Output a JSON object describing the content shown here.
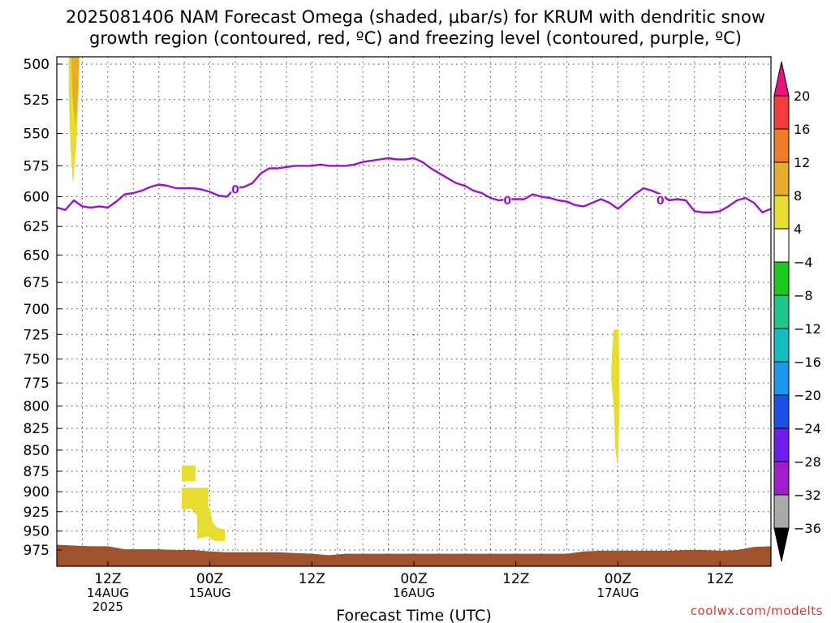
{
  "title_line1": "2025081406 NAM Forecast Omega (shaded, μbar/s) for KRUM with dendritic snow",
  "title_line2": "growth region (contoured, red, ºC) and freezing level (contoured, purple, ºC)",
  "watermark": "coolwx.com/modelts",
  "chart_data": {
    "type": "area",
    "title": "2025081406 NAM Forecast Omega (shaded, μbar/s) for KRUM with dendritic snow growth region (contoured, red, ºC) and freezing level (contoured, purple, ºC)",
    "xlabel": "Forecast Time (UTC)",
    "ylabel": "",
    "x_range_hours": [
      6,
      90
    ],
    "y_range_hPa": [
      495,
      997
    ],
    "y_scale": "log-pressure (inverted)",
    "grid": true,
    "y_ticks": [
      500,
      525,
      550,
      575,
      600,
      625,
      650,
      675,
      700,
      725,
      750,
      775,
      800,
      825,
      850,
      875,
      900,
      925,
      950,
      975
    ],
    "x_ticks": [
      {
        "hour": 12,
        "lines": [
          "12Z",
          "14AUG",
          "2025"
        ]
      },
      {
        "hour": 24,
        "lines": [
          "00Z",
          "15AUG"
        ]
      },
      {
        "hour": 36,
        "lines": [
          "12Z"
        ]
      },
      {
        "hour": 48,
        "lines": [
          "00Z",
          "16AUG"
        ]
      },
      {
        "hour": 60,
        "lines": [
          "12Z"
        ]
      },
      {
        "hour": 72,
        "lines": [
          "00Z",
          "17AUG"
        ]
      },
      {
        "hour": 84,
        "lines": [
          "12Z"
        ]
      }
    ],
    "colorbar": {
      "labels": [
        "20",
        "16",
        "12",
        "8",
        "4",
        "−4",
        "−8",
        "−12",
        "−16",
        "−20",
        "−24",
        "−28",
        "−32",
        "−36"
      ],
      "bins": [
        {
          "from": 16,
          "to": 20,
          "color": "#f03c3c"
        },
        {
          "from": 12,
          "to": 16,
          "color": "#ee7a2a"
        },
        {
          "from": 8,
          "to": 12,
          "color": "#e6ac2e"
        },
        {
          "from": 4,
          "to": 8,
          "color": "#e6dc32"
        },
        {
          "from": -4,
          "to": 4,
          "color": "#ffffff"
        },
        {
          "from": -8,
          "to": -4,
          "color": "#1ec81e"
        },
        {
          "from": -12,
          "to": -8,
          "color": "#1ec88c"
        },
        {
          "from": -16,
          "to": -12,
          "color": "#14bebe"
        },
        {
          "from": -20,
          "to": -16,
          "color": "#1e96f0"
        },
        {
          "from": -24,
          "to": -20,
          "color": "#1e50e6"
        },
        {
          "from": -28,
          "to": -24,
          "color": "#6e1ee6"
        },
        {
          "from": -32,
          "to": -28,
          "color": "#a01ec8"
        },
        {
          "from": -36,
          "to": -32,
          "color": "#aaaaaa"
        }
      ],
      "over_color": "#e6147a",
      "under_color": "#000000"
    },
    "freezing_level": {
      "label": "0",
      "color": "#9a14c8",
      "points": [
        [
          6,
          609
        ],
        [
          7,
          611
        ],
        [
          8,
          603
        ],
        [
          9,
          608
        ],
        [
          10,
          609
        ],
        [
          11,
          608
        ],
        [
          12,
          609
        ],
        [
          13,
          604
        ],
        [
          14,
          598
        ],
        [
          15,
          597
        ],
        [
          16,
          595
        ],
        [
          17,
          592
        ],
        [
          18,
          590
        ],
        [
          19,
          591
        ],
        [
          20,
          593
        ],
        [
          21,
          593
        ],
        [
          22,
          593
        ],
        [
          23,
          594
        ],
        [
          24,
          596
        ],
        [
          25,
          599
        ],
        [
          26,
          600
        ],
        [
          27,
          593
        ],
        [
          28,
          592
        ],
        [
          29,
          589
        ],
        [
          30,
          581
        ],
        [
          31,
          577
        ],
        [
          32,
          577
        ],
        [
          33,
          576
        ],
        [
          34,
          575
        ],
        [
          35,
          575
        ],
        [
          36,
          575
        ],
        [
          37,
          574
        ],
        [
          38,
          575
        ],
        [
          39,
          575
        ],
        [
          40,
          575
        ],
        [
          41,
          574
        ],
        [
          42,
          572
        ],
        [
          43,
          571
        ],
        [
          44,
          570
        ],
        [
          45,
          569
        ],
        [
          46,
          570
        ],
        [
          47,
          570
        ],
        [
          48,
          569
        ],
        [
          49,
          572
        ],
        [
          50,
          577
        ],
        [
          51,
          581
        ],
        [
          52,
          585
        ],
        [
          53,
          589
        ],
        [
          54,
          591
        ],
        [
          55,
          595
        ],
        [
          56,
          597
        ],
        [
          57,
          601
        ],
        [
          58,
          603
        ],
        [
          59,
          602
        ],
        [
          60,
          602
        ],
        [
          61,
          602
        ],
        [
          62,
          598
        ],
        [
          63,
          600
        ],
        [
          64,
          601
        ],
        [
          65,
          603
        ],
        [
          66,
          604
        ],
        [
          67,
          607
        ],
        [
          68,
          608
        ],
        [
          69,
          605
        ],
        [
          70,
          602
        ],
        [
          71,
          605
        ],
        [
          72,
          610
        ],
        [
          73,
          604
        ],
        [
          74,
          598
        ],
        [
          75,
          593
        ],
        [
          76,
          595
        ],
        [
          77,
          598
        ],
        [
          78,
          603
        ],
        [
          79,
          602
        ],
        [
          80,
          603
        ],
        [
          81,
          612
        ],
        [
          82,
          613
        ],
        [
          83,
          613
        ],
        [
          84,
          612
        ],
        [
          85,
          608
        ],
        [
          86,
          603
        ],
        [
          87,
          601
        ],
        [
          88,
          605
        ],
        [
          89,
          613
        ],
        [
          90,
          610
        ]
      ],
      "label_positions": [
        [
          27,
          594
        ],
        [
          59,
          603
        ],
        [
          77,
          603
        ]
      ]
    },
    "omega_shaded_regions": [
      {
        "value_bin": "4 to 8",
        "color": "#e6dc32",
        "points": [
          [
            7.4,
            495
          ],
          [
            8.7,
            495
          ],
          [
            8.5,
            530
          ],
          [
            8.3,
            560
          ],
          [
            7.9,
            590
          ],
          [
            7.6,
            560
          ],
          [
            7.4,
            520
          ]
        ]
      },
      {
        "value_bin": "8 to 12",
        "color": "#e6ac2e",
        "points": [
          [
            7.7,
            495
          ],
          [
            8.6,
            495
          ],
          [
            8.5,
            520
          ],
          [
            8.2,
            545
          ],
          [
            7.8,
            520
          ]
        ]
      },
      {
        "value_bin": "4 to 8",
        "color": "#e6dc32",
        "points": [
          [
            20.7,
            868
          ],
          [
            22.3,
            868
          ],
          [
            22.3,
            887
          ],
          [
            20.7,
            887
          ]
        ]
      },
      {
        "value_bin": "4 to 8",
        "color": "#e6dc32",
        "points": [
          [
            20.7,
            895
          ],
          [
            23.8,
            895
          ],
          [
            23.8,
            920
          ],
          [
            24.0,
            920
          ],
          [
            24.3,
            938
          ],
          [
            24.8,
            945
          ],
          [
            25.8,
            948
          ],
          [
            25.8,
            963
          ],
          [
            24.5,
            963
          ],
          [
            23.8,
            957
          ],
          [
            22.5,
            960
          ],
          [
            22.5,
            930
          ],
          [
            21.8,
            921
          ],
          [
            20.7,
            922
          ]
        ]
      },
      {
        "value_bin": "4 to 8",
        "color": "#e6dc32",
        "points": [
          [
            71.5,
            720
          ],
          [
            72.1,
            720
          ],
          [
            72.2,
            800
          ],
          [
            72.0,
            870
          ],
          [
            71.7,
            850
          ],
          [
            71.5,
            800
          ],
          [
            71.2,
            770
          ],
          [
            71.3,
            745
          ]
        ]
      }
    ],
    "ground_terrain": {
      "color": "#a0522d",
      "points": [
        [
          6,
          968
        ],
        [
          8,
          969
        ],
        [
          10,
          970
        ],
        [
          12,
          970
        ],
        [
          14,
          974
        ],
        [
          16,
          974
        ],
        [
          18,
          974
        ],
        [
          20,
          975
        ],
        [
          22,
          975
        ],
        [
          24,
          977
        ],
        [
          26,
          978
        ],
        [
          28,
          978
        ],
        [
          30,
          978
        ],
        [
          32,
          978
        ],
        [
          34,
          979
        ],
        [
          36,
          980
        ],
        [
          38,
          982
        ],
        [
          40,
          980
        ],
        [
          42,
          980
        ],
        [
          44,
          980
        ],
        [
          46,
          980
        ],
        [
          48,
          980
        ],
        [
          50,
          980
        ],
        [
          52,
          980
        ],
        [
          54,
          980
        ],
        [
          56,
          980
        ],
        [
          58,
          980
        ],
        [
          60,
          980
        ],
        [
          62,
          980
        ],
        [
          64,
          980
        ],
        [
          66,
          980
        ],
        [
          68,
          977
        ],
        [
          70,
          976
        ],
        [
          72,
          976
        ],
        [
          74,
          976
        ],
        [
          76,
          976
        ],
        [
          78,
          976
        ],
        [
          80,
          975
        ],
        [
          82,
          975
        ],
        [
          84,
          976
        ],
        [
          86,
          975
        ],
        [
          88,
          971
        ],
        [
          90,
          970
        ]
      ]
    }
  }
}
